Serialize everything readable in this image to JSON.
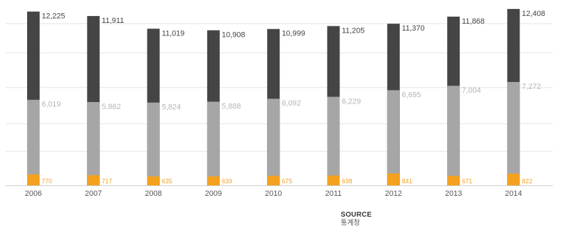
{
  "chart_data": {
    "type": "bar",
    "stacked": false,
    "categories": [
      "2006",
      "2007",
      "2008",
      "2009",
      "2010",
      "2011",
      "2012",
      "2013",
      "2014"
    ],
    "series": [
      {
        "values": [
          12225,
          11911,
          11019,
          10908,
          10999,
          11205,
          11370,
          11868,
          12408
        ],
        "labels": [
          "12,225",
          "11,911",
          "11,019",
          "10,908",
          "10,999",
          "11,205",
          "11,370",
          "11,868",
          "12,408"
        ],
        "color": "#454545",
        "label_color": "#444444"
      },
      {
        "values": [
          6019,
          5862,
          5824,
          5888,
          6092,
          6229,
          6695,
          7004,
          7272
        ],
        "labels": [
          "6,019",
          "5,862",
          "5,824",
          "5,888",
          "6,092",
          "6,229",
          "6,695",
          "7,004",
          "7,272"
        ],
        "color": "#a6a6a6",
        "label_color": "#b4b4b4"
      },
      {
        "values": [
          770,
          717,
          635,
          639,
          675,
          698,
          841,
          671,
          822
        ],
        "labels": [
          "770",
          "717",
          "635",
          "639",
          "675",
          "698",
          "841",
          "671",
          "822"
        ],
        "color": "#f4a11e",
        "label_color": "#f4a11e"
      }
    ],
    "ylim": [
      0,
      12500
    ],
    "grid": true,
    "legend": "none"
  },
  "source": {
    "title": "SOURCE",
    "value": "통계청"
  }
}
